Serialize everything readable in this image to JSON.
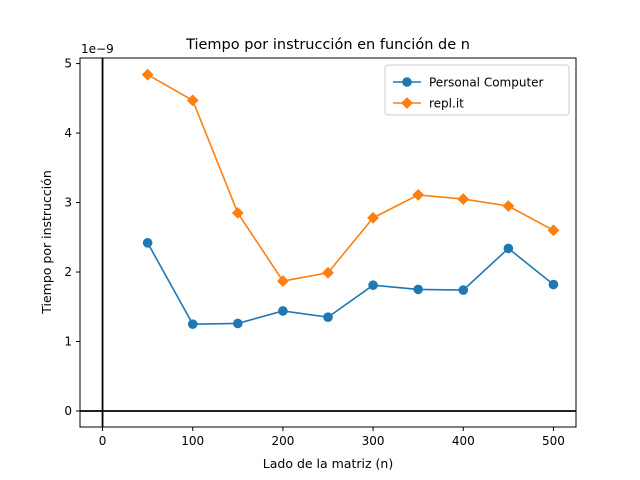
{
  "chart_data": {
    "type": "line",
    "title": "Tiempo por instrucción en función de n",
    "xlabel": "Lado de la matriz (n)",
    "ylabel": "Tiempo por instrucción",
    "y_offset_text": "1e−9",
    "xlim": [
      -25,
      525
    ],
    "ylim": [
      -0.23,
      5.08
    ],
    "x_ticks": [
      0,
      100,
      200,
      300,
      400,
      500
    ],
    "x_tick_labels": [
      "0",
      "100",
      "200",
      "300",
      "400",
      "500"
    ],
    "y_ticks": [
      0,
      1,
      2,
      3,
      4,
      5
    ],
    "y_tick_labels": [
      "0",
      "1",
      "2",
      "3",
      "4",
      "5"
    ],
    "grid": false,
    "legend_position": "upper right",
    "reference_lines": {
      "x": 0,
      "y": 0
    },
    "x": [
      50,
      100,
      150,
      200,
      250,
      300,
      350,
      400,
      450,
      500
    ],
    "series": [
      {
        "name": "Personal Computer",
        "marker": "circle",
        "color": "#1f77b4",
        "values": [
          2.42,
          1.25,
          1.26,
          1.44,
          1.35,
          1.81,
          1.75,
          1.74,
          2.34,
          1.82
        ]
      },
      {
        "name": "repl.it",
        "marker": "diamond",
        "color": "#ff7f0e",
        "values": [
          4.84,
          4.47,
          2.85,
          1.87,
          1.99,
          2.78,
          3.11,
          3.05,
          2.95,
          2.6
        ]
      }
    ]
  }
}
